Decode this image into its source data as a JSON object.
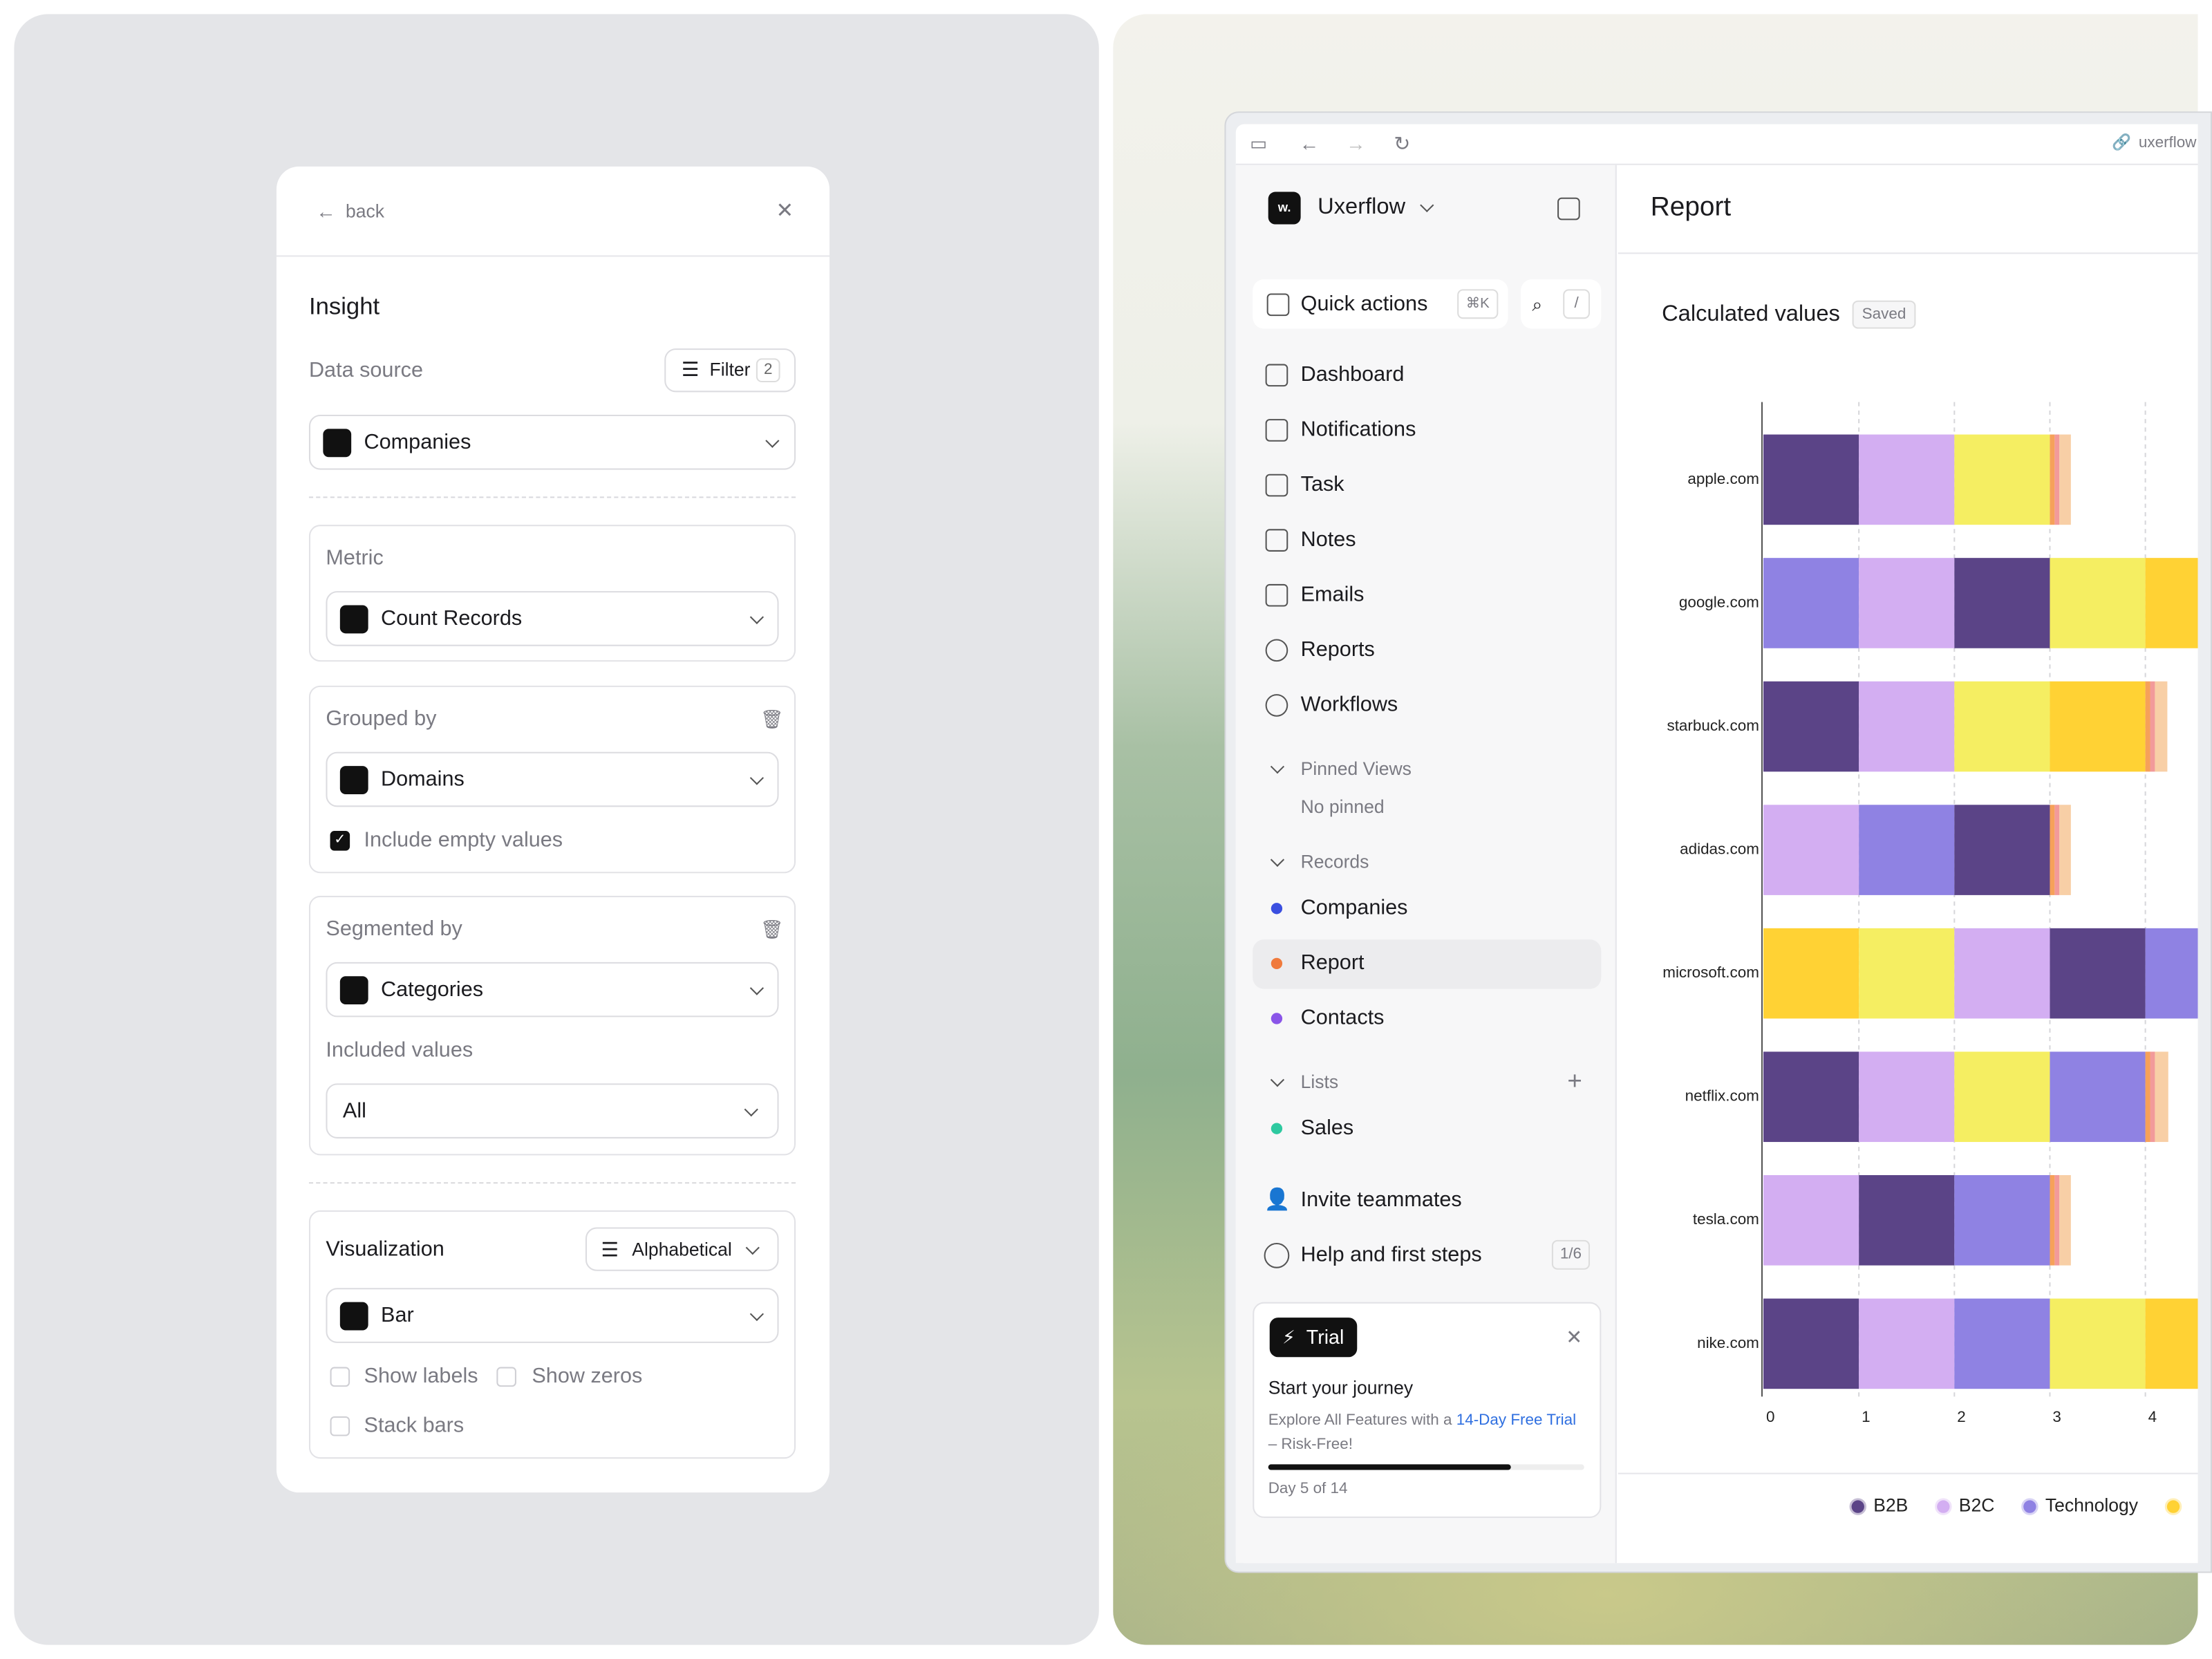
{
  "insight_panel": {
    "back": "back",
    "title": "Insight",
    "data_source": {
      "label": "Data source",
      "filter": "Filter",
      "filter_count": "2",
      "value": "Companies"
    },
    "metric": {
      "label": "Metric",
      "value": "Count Records"
    },
    "grouped_by": {
      "label": "Grouped by",
      "value": "Domains",
      "include_empty": "Include empty values"
    },
    "segmented_by": {
      "label": "Segmented by",
      "value": "Categories",
      "included_values_label": "Included values",
      "included_values": "All"
    },
    "visualization": {
      "label": "Visualization",
      "sort": "Alphabetical",
      "value": "Bar",
      "options": [
        "Show labels",
        "Show zeros",
        "Stack bars"
      ]
    }
  },
  "browser": {
    "url": "uxerflow"
  },
  "sidebar": {
    "workspace": "Uxerflow",
    "quick_actions": "Quick actions",
    "shortcut": "⌘K",
    "search_shortcut": "/",
    "nav": [
      "Dashboard",
      "Notifications",
      "Task",
      "Notes",
      "Emails",
      "Reports",
      "Workflows"
    ],
    "pinned": {
      "title": "Pinned Views",
      "empty": "No pinned"
    },
    "records": {
      "title": "Records",
      "items": [
        "Companies",
        "Report",
        "Contacts"
      ]
    },
    "lists": {
      "title": "Lists",
      "items": [
        "Sales"
      ]
    },
    "invite": "Invite teammates",
    "help": "Help and first steps",
    "help_progress": "1/6",
    "trial": {
      "badge": "Trial",
      "title": "Start your journey",
      "text_before": "Explore All Features with a ",
      "link": "14-Day Free Trial",
      "text_after": " – Risk-Free!",
      "progress": "Day 5 of 14"
    }
  },
  "report_title": "Report",
  "chart_data": {
    "type": "bar",
    "orientation": "horizontal",
    "title": "Calculated values",
    "status": "Saved",
    "categories": [
      "apple.com",
      "google.com",
      "starbuck.com",
      "adidas.com",
      "microsoft.com",
      "netflix.com",
      "tesla.com",
      "nike.com"
    ],
    "bars": [
      {
        "segments": [
          {
            "color": "#5b4487",
            "value": 1
          },
          {
            "color": "#d3aef2",
            "value": 1
          },
          {
            "color": "#f5ee62",
            "value": 1
          },
          {
            "color": "#f6a15a",
            "value": 0.05
          },
          {
            "color": "#f29a9a",
            "value": 0.05
          },
          {
            "color": "#f8cfa6",
            "value": 0.12
          }
        ]
      },
      {
        "segments": [
          {
            "color": "#8f82e3",
            "value": 1
          },
          {
            "color": "#d3aef2",
            "value": 1
          },
          {
            "color": "#5b4487",
            "value": 1
          },
          {
            "color": "#f5ee62",
            "value": 1
          },
          {
            "color": "#ffd234",
            "value": 0.6
          }
        ]
      },
      {
        "segments": [
          {
            "color": "#5b4487",
            "value": 1
          },
          {
            "color": "#d3aef2",
            "value": 1
          },
          {
            "color": "#f5ee62",
            "value": 1
          },
          {
            "color": "#ffd234",
            "value": 1
          },
          {
            "color": "#f6a15a",
            "value": 0.05
          },
          {
            "color": "#f29a9a",
            "value": 0.05
          },
          {
            "color": "#f8cfa6",
            "value": 0.13
          }
        ]
      },
      {
        "segments": [
          {
            "color": "#d3aef2",
            "value": 1
          },
          {
            "color": "#8f82e3",
            "value": 1
          },
          {
            "color": "#5b4487",
            "value": 1
          },
          {
            "color": "#f6a15a",
            "value": 0.05
          },
          {
            "color": "#f29a9a",
            "value": 0.05
          },
          {
            "color": "#f8cfa6",
            "value": 0.12
          }
        ]
      },
      {
        "segments": [
          {
            "color": "#ffd234",
            "value": 1
          },
          {
            "color": "#f5ee62",
            "value": 1
          },
          {
            "color": "#d3aef2",
            "value": 1
          },
          {
            "color": "#5b4487",
            "value": 1
          },
          {
            "color": "#8f82e3",
            "value": 0.6
          }
        ]
      },
      {
        "segments": [
          {
            "color": "#5b4487",
            "value": 1
          },
          {
            "color": "#d3aef2",
            "value": 1
          },
          {
            "color": "#f5ee62",
            "value": 1
          },
          {
            "color": "#8f82e3",
            "value": 1
          },
          {
            "color": "#f6a15a",
            "value": 0.05
          },
          {
            "color": "#f29a9a",
            "value": 0.05
          },
          {
            "color": "#f8cfa6",
            "value": 0.14
          }
        ]
      },
      {
        "segments": [
          {
            "color": "#d3aef2",
            "value": 1
          },
          {
            "color": "#5b4487",
            "value": 1
          },
          {
            "color": "#8f82e3",
            "value": 1
          },
          {
            "color": "#f6a15a",
            "value": 0.05
          },
          {
            "color": "#f29a9a",
            "value": 0.05
          },
          {
            "color": "#f8cfa6",
            "value": 0.12
          }
        ]
      },
      {
        "segments": [
          {
            "color": "#5b4487",
            "value": 1
          },
          {
            "color": "#d3aef2",
            "value": 1
          },
          {
            "color": "#8f82e3",
            "value": 1
          },
          {
            "color": "#f5ee62",
            "value": 1
          },
          {
            "color": "#ffd234",
            "value": 0.6
          }
        ]
      }
    ],
    "xlim": [
      0,
      4.55
    ],
    "xticks": [
      0,
      1,
      2,
      3,
      4
    ],
    "grid": true,
    "legend": [
      {
        "name": "B2B",
        "color": "#5b4487"
      },
      {
        "name": "B2C",
        "color": "#d3aef2"
      },
      {
        "name": "Technology",
        "color": "#8f82e3"
      },
      {
        "color": "#ffd234"
      }
    ]
  }
}
